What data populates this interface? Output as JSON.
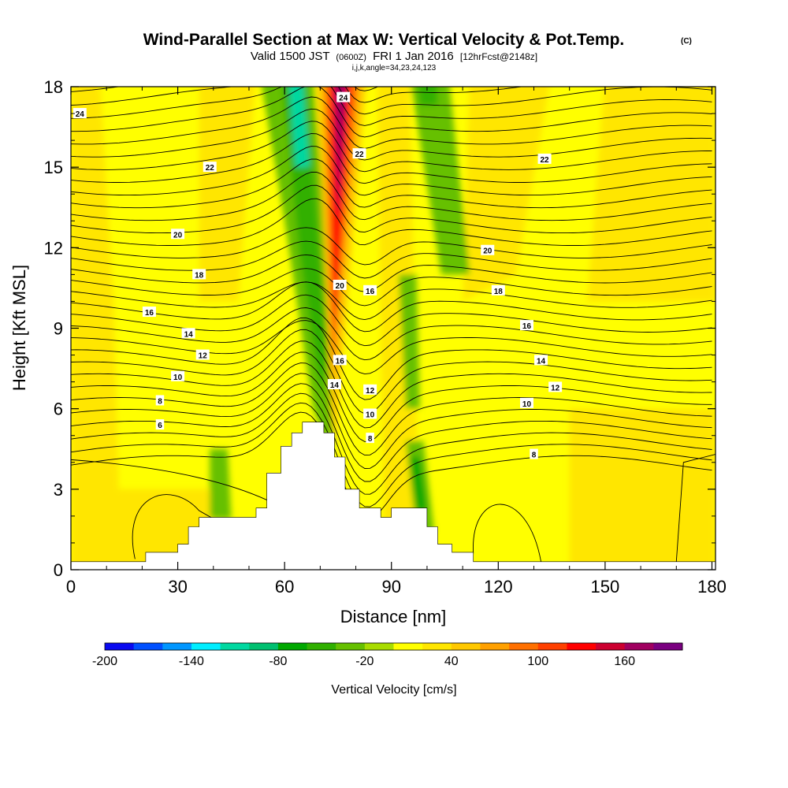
{
  "chart_data": {
    "type": "heatmap",
    "title": "Wind-Parallel Section at Max W: Vertical Velocity & Pot.Temp.",
    "title_mark": "(C)",
    "subtitle": {
      "valid": "Valid 1500 JST",
      "utc": "(0600Z)",
      "date": "FRI 1 Jan 2016",
      "forecast": "[12hrFcst@2148z]"
    },
    "grid_info": "i,j,k,angle=34,23,24,123",
    "xlabel": "Distance [nm]",
    "ylabel": "Height [Kft MSL]",
    "xlim": [
      0,
      181
    ],
    "ylim": [
      0,
      18
    ],
    "xticks": [
      0,
      30,
      60,
      90,
      120,
      150,
      180
    ],
    "yticks": [
      0,
      3,
      6,
      9,
      12,
      15,
      18
    ],
    "colorbar": {
      "label": "Vertical Velocity [cm/s]",
      "ticks": [
        -200,
        -140,
        -80,
        -20,
        40,
        100,
        160
      ],
      "levels": [
        -200,
        -180,
        -160,
        -140,
        -120,
        -100,
        -80,
        -60,
        -40,
        -20,
        0,
        20,
        40,
        60,
        80,
        100,
        120,
        140,
        160,
        180
      ],
      "colors": [
        "#0a0af0",
        "#0050ff",
        "#0096ff",
        "#00eeff",
        "#00d8a0",
        "#00c070",
        "#00a800",
        "#30b000",
        "#66c000",
        "#a8dc00",
        "#ffff00",
        "#ffe600",
        "#ffc800",
        "#ffa000",
        "#ff7000",
        "#ff4000",
        "#ff0000",
        "#cc0030",
        "#a00060",
        "#7a0080"
      ]
    },
    "terrain": [
      [
        0,
        0.3
      ],
      [
        21,
        0.3
      ],
      [
        21,
        0.65
      ],
      [
        30,
        0.65
      ],
      [
        30,
        0.95
      ],
      [
        33,
        0.95
      ],
      [
        33,
        1.6
      ],
      [
        36,
        1.6
      ],
      [
        36,
        1.95
      ],
      [
        52,
        1.95
      ],
      [
        52,
        2.3
      ],
      [
        55,
        2.3
      ],
      [
        55,
        3.6
      ],
      [
        59,
        3.6
      ],
      [
        59,
        4.6
      ],
      [
        62,
        4.6
      ],
      [
        62,
        5.1
      ],
      [
        65,
        5.1
      ],
      [
        65,
        5.5
      ],
      [
        71,
        5.5
      ],
      [
        71,
        5.1
      ],
      [
        74,
        5.1
      ],
      [
        74,
        4.2
      ],
      [
        77,
        4.2
      ],
      [
        77,
        3.0
      ],
      [
        81,
        3.0
      ],
      [
        81,
        2.3
      ],
      [
        87,
        2.3
      ],
      [
        87,
        1.95
      ],
      [
        90,
        1.95
      ],
      [
        90,
        2.3
      ],
      [
        100,
        2.3
      ],
      [
        100,
        1.6
      ],
      [
        103,
        1.6
      ],
      [
        103,
        0.95
      ],
      [
        107,
        0.95
      ],
      [
        107,
        0.65
      ],
      [
        113,
        0.65
      ],
      [
        113,
        0.3
      ],
      [
        181,
        0.3
      ]
    ],
    "contours": {
      "variable": "Potential temperature",
      "interval": 0.5,
      "labels": [
        {
          "text": "24",
          "x": 2.5,
          "y": 17.0
        },
        {
          "text": "22",
          "x": 39,
          "y": 15.0
        },
        {
          "text": "20",
          "x": 30,
          "y": 12.5
        },
        {
          "text": "18",
          "x": 36,
          "y": 11.0
        },
        {
          "text": "16",
          "x": 22,
          "y": 9.6
        },
        {
          "text": "14",
          "x": 33,
          "y": 8.8
        },
        {
          "text": "12",
          "x": 37,
          "y": 8.0
        },
        {
          "text": "10",
          "x": 30,
          "y": 7.2
        },
        {
          "text": "8",
          "x": 25,
          "y": 6.3
        },
        {
          "text": "6",
          "x": 25,
          "y": 5.4
        },
        {
          "text": "24",
          "x": 76.5,
          "y": 17.6
        },
        {
          "text": "22",
          "x": 81,
          "y": 15.5
        },
        {
          "text": "20",
          "x": 75.5,
          "y": 10.6
        },
        {
          "text": "16",
          "x": 84,
          "y": 10.4
        },
        {
          "text": "16",
          "x": 75.5,
          "y": 7.8
        },
        {
          "text": "14",
          "x": 74,
          "y": 6.9
        },
        {
          "text": "12",
          "x": 84,
          "y": 6.7
        },
        {
          "text": "10",
          "x": 84,
          "y": 5.8
        },
        {
          "text": "8",
          "x": 84,
          "y": 4.9
        },
        {
          "text": "22",
          "x": 133,
          "y": 15.3
        },
        {
          "text": "20",
          "x": 117,
          "y": 11.9
        },
        {
          "text": "18",
          "x": 120,
          "y": 10.4
        },
        {
          "text": "16",
          "x": 128,
          "y": 9.1
        },
        {
          "text": "14",
          "x": 132,
          "y": 7.8
        },
        {
          "text": "12",
          "x": 136,
          "y": 6.8
        },
        {
          "text": "10",
          "x": 128,
          "y": 6.2
        },
        {
          "text": "8",
          "x": 130,
          "y": 4.3
        }
      ]
    }
  }
}
